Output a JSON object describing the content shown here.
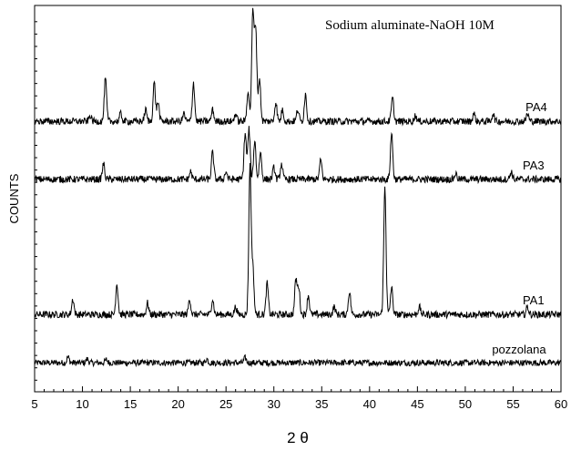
{
  "chart_data": {
    "type": "line",
    "title": "Sodium aluminate-NaOH 10M",
    "xlabel": "2 θ",
    "ylabel": "COUNTS",
    "xlim": [
      5,
      60
    ],
    "x_ticks": [
      5,
      10,
      15,
      20,
      25,
      30,
      35,
      40,
      45,
      50,
      55,
      60
    ],
    "x_tick_labels": [
      "5",
      "10",
      "15",
      "20",
      "25",
      "30",
      "35",
      "40",
      "45",
      "50",
      "55",
      "60"
    ],
    "ylim": [
      0,
      100
    ],
    "y_tick_labels": false,
    "grid": false,
    "legend": "none",
    "series": [
      {
        "name": "pozzolana",
        "baseline": 7.5,
        "noise": 0.8,
        "peaks": [
          [
            8.5,
            1.5
          ],
          [
            10.5,
            1.0
          ],
          [
            12.5,
            0.8
          ],
          [
            23.0,
            1.0
          ],
          [
            27.0,
            1.3
          ]
        ]
      },
      {
        "name": "PA1",
        "baseline": 20,
        "noise": 0.9,
        "peaks": [
          [
            9.0,
            4
          ],
          [
            13.6,
            8
          ],
          [
            16.8,
            3
          ],
          [
            21.2,
            4
          ],
          [
            23.6,
            4
          ],
          [
            26.0,
            2
          ],
          [
            27.5,
            38
          ],
          [
            27.8,
            12
          ],
          [
            29.3,
            8
          ],
          [
            32.3,
            9
          ],
          [
            32.6,
            7
          ],
          [
            33.6,
            5
          ],
          [
            36.3,
            2
          ],
          [
            37.9,
            6
          ],
          [
            41.6,
            33
          ],
          [
            42.3,
            7
          ],
          [
            45.2,
            2
          ],
          [
            56.5,
            2
          ]
        ]
      },
      {
        "name": "PA3",
        "baseline": 55,
        "noise": 0.9,
        "peaks": [
          [
            12.2,
            4
          ],
          [
            21.3,
            2
          ],
          [
            23.6,
            7
          ],
          [
            25.0,
            2
          ],
          [
            27.0,
            12
          ],
          [
            27.4,
            13
          ],
          [
            28.0,
            10
          ],
          [
            28.6,
            7
          ],
          [
            30.0,
            3
          ],
          [
            30.8,
            4
          ],
          [
            34.9,
            5
          ],
          [
            42.3,
            12
          ],
          [
            49.0,
            1.5
          ],
          [
            54.8,
            2
          ]
        ]
      },
      {
        "name": "PA4",
        "baseline": 70,
        "noise": 0.9,
        "peaks": [
          [
            10.8,
            1.5
          ],
          [
            12.4,
            11
          ],
          [
            14.0,
            2
          ],
          [
            16.6,
            3
          ],
          [
            17.5,
            10
          ],
          [
            17.9,
            5
          ],
          [
            20.6,
            2
          ],
          [
            21.6,
            10
          ],
          [
            23.6,
            3
          ],
          [
            26.0,
            2
          ],
          [
            27.3,
            8
          ],
          [
            27.8,
            28
          ],
          [
            28.1,
            24
          ],
          [
            28.5,
            11
          ],
          [
            30.2,
            5
          ],
          [
            30.9,
            3
          ],
          [
            32.5,
            3
          ],
          [
            33.3,
            7
          ],
          [
            42.4,
            6
          ],
          [
            44.8,
            1.5
          ],
          [
            50.9,
            2
          ],
          [
            52.9,
            2
          ],
          [
            56.5,
            2
          ]
        ]
      }
    ]
  }
}
